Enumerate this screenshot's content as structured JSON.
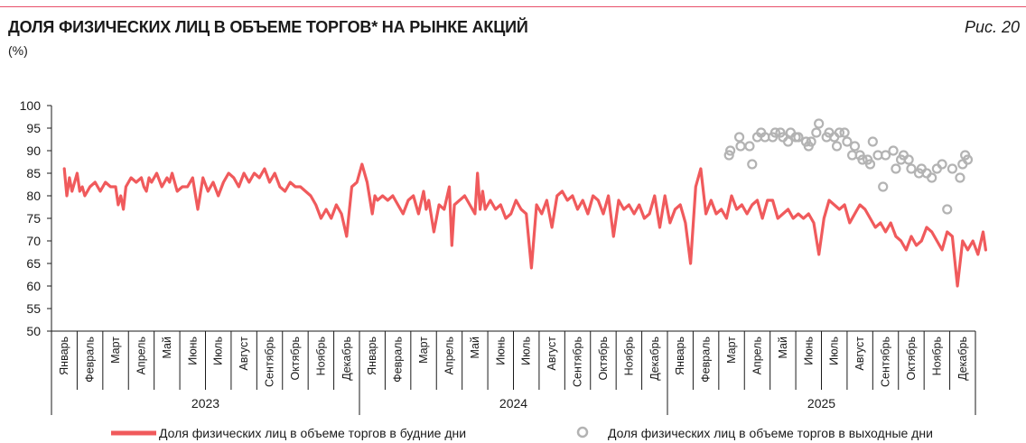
{
  "header": {
    "title": "ДОЛЯ ФИЗИЧЕСКИХ ЛИЦ В ОБЪЕМЕ ТОРГОВ* НА РЫНКЕ АКЦИЙ",
    "unit": "(%)",
    "figure_label": "Рис. 20"
  },
  "colors": {
    "weekday": "#f05a5c",
    "weekend": "#b3b3b3",
    "rule": "#e8506a"
  },
  "chart_data": {
    "type": "line",
    "ylim": [
      50,
      100
    ],
    "yticks": [
      50,
      55,
      60,
      65,
      70,
      75,
      80,
      85,
      90,
      95,
      100
    ],
    "grid": false,
    "legend_position": "bottom",
    "months": [
      "Январь",
      "Февраль",
      "Март",
      "Апрель",
      "Май",
      "Июнь",
      "Июль",
      "Август",
      "Сентябрь",
      "Октябрь",
      "Ноябрь",
      "Декабрь"
    ],
    "years": [
      "2023",
      "2024",
      "2025"
    ],
    "series": [
      {
        "name": "Доля физических лиц в объеме торгов в будние дни",
        "style": "line",
        "x_month_index": [
          0,
          0.1,
          0.2,
          0.3,
          0.4,
          0.5,
          0.6,
          0.7,
          0.8,
          0.9,
          1.0,
          1.2,
          1.4,
          1.6,
          1.8,
          2.0,
          2.1,
          2.2,
          2.3,
          2.4,
          2.6,
          2.8,
          3.0,
          3.1,
          3.2,
          3.3,
          3.4,
          3.6,
          3.8,
          4.0,
          4.1,
          4.2,
          4.4,
          4.6,
          4.8,
          5.0,
          5.2,
          5.4,
          5.6,
          5.8,
          6.0,
          6.2,
          6.4,
          6.6,
          6.8,
          7.0,
          7.2,
          7.4,
          7.6,
          7.8,
          8.0,
          8.2,
          8.4,
          8.6,
          8.8,
          9.0,
          9.2,
          9.4,
          9.6,
          9.8,
          10.0,
          10.2,
          10.4,
          10.6,
          10.8,
          11.0,
          11.2,
          11.4,
          11.6,
          11.8,
          12.0,
          12.1,
          12.2,
          12.4,
          12.6,
          12.8,
          13.0,
          13.2,
          13.4,
          13.6,
          13.8,
          14.0,
          14.1,
          14.2,
          14.4,
          14.6,
          14.8,
          15.0,
          15.1,
          15.2,
          15.4,
          15.6,
          15.8,
          16.0,
          16.1,
          16.2,
          16.3,
          16.4,
          16.6,
          16.8,
          17.0,
          17.2,
          17.4,
          17.6,
          17.8,
          18.0,
          18.2,
          18.4,
          18.6,
          18.8,
          19.0,
          19.2,
          19.4,
          19.6,
          19.8,
          20.0,
          20.2,
          20.4,
          20.6,
          20.8,
          21.0,
          21.2,
          21.4,
          21.6,
          21.8,
          22.0,
          22.2,
          22.4,
          22.6,
          22.8,
          23.0,
          23.2,
          23.4,
          23.6,
          23.8,
          24.0,
          24.1,
          24.2,
          24.4,
          24.6,
          24.8,
          25.0,
          25.2,
          25.4,
          25.6,
          25.8,
          26.0,
          26.2,
          26.4,
          26.6,
          26.8,
          27.0,
          27.2,
          27.4,
          27.6,
          27.8,
          28.0,
          28.2,
          28.4,
          28.6,
          28.8,
          29.0,
          29.2,
          29.4,
          29.6,
          29.8,
          30.0,
          30.2,
          30.4,
          30.6,
          30.8,
          31.0,
          31.2,
          31.4,
          31.6,
          31.8,
          32.0,
          32.2,
          32.4,
          32.6,
          32.8,
          33.0,
          33.2,
          33.4,
          33.6,
          33.8,
          34.0,
          34.2,
          34.4,
          34.6,
          34.8,
          35.0,
          35.2,
          35.4,
          35.6,
          35.8,
          35.9
        ],
        "values": [
          86,
          80,
          84,
          81,
          83,
          85,
          81,
          82,
          80,
          81,
          82,
          83,
          81,
          83,
          82,
          82,
          78,
          80,
          77,
          82,
          84,
          83,
          84,
          82,
          81,
          84,
          83,
          85,
          82,
          84,
          83,
          85,
          81,
          82,
          82,
          84,
          77,
          84,
          81,
          83,
          80,
          83,
          85,
          84,
          82,
          85,
          83,
          85,
          84,
          86,
          83,
          85,
          82,
          81,
          83,
          82,
          82,
          81,
          80,
          78,
          75,
          77,
          75,
          78,
          76,
          71,
          82,
          83,
          87,
          83,
          76,
          80,
          79,
          80,
          79,
          80,
          78,
          76,
          79,
          80,
          76,
          81,
          77,
          79,
          72,
          78,
          77,
          82,
          69,
          78,
          79,
          80,
          78,
          76,
          85,
          77,
          81,
          77,
          79,
          77,
          78,
          75,
          76,
          79,
          77,
          76,
          64,
          78,
          76,
          79,
          73,
          80,
          81,
          79,
          80,
          77,
          79,
          76,
          80,
          79,
          76,
          80,
          71,
          79,
          77,
          78,
          76,
          78,
          75,
          76,
          80,
          73,
          80,
          74,
          77,
          78,
          76,
          74,
          65,
          82,
          86,
          76,
          79,
          76,
          77,
          75,
          80,
          77,
          78,
          76,
          78,
          79,
          75,
          79,
          79,
          75,
          76,
          77,
          75,
          76,
          75,
          76,
          74,
          67,
          75,
          79,
          78,
          77,
          78,
          74,
          76,
          78,
          77,
          75,
          73,
          74,
          72,
          74,
          71,
          70,
          68,
          71,
          69,
          70,
          73,
          72,
          70,
          68,
          72,
          71,
          60,
          70,
          68,
          70,
          67,
          72,
          68,
          70,
          67,
          70,
          68,
          70,
          71,
          73
        ]
      },
      {
        "name": "Доля физических лиц в объеме торгов в выходные дни",
        "style": "markers",
        "x_month_index": [
          25.9,
          25.95,
          26.3,
          26.35,
          26.7,
          26.8,
          27.0,
          27.15,
          27.3,
          27.6,
          27.7,
          27.9,
          28.0,
          28.2,
          28.3,
          28.5,
          28.6,
          28.9,
          29.0,
          29.1,
          29.3,
          29.4,
          29.7,
          29.8,
          30.0,
          30.1,
          30.2,
          30.4,
          30.5,
          30.7,
          30.8,
          31.0,
          31.1,
          31.3,
          31.4,
          31.5,
          31.7,
          31.9,
          32.0,
          32.3,
          32.4,
          32.6,
          32.7,
          32.9,
          33.0,
          33.3,
          33.4,
          33.6,
          33.8,
          34.0,
          34.2,
          34.4,
          34.6,
          34.9,
          35.0,
          35.1,
          35.2
        ],
        "values": [
          89,
          90,
          93,
          91,
          91,
          87,
          93,
          94,
          93,
          93,
          94,
          94,
          93,
          92,
          94,
          93,
          93,
          92,
          91,
          92,
          94,
          96,
          93,
          94,
          93,
          91,
          94,
          94,
          92,
          89,
          91,
          89,
          88,
          88,
          87,
          92,
          89,
          82,
          89,
          90,
          86,
          88,
          89,
          88,
          86,
          85,
          86,
          85,
          84,
          86,
          87,
          77,
          86,
          84,
          87,
          89,
          88
        ]
      }
    ]
  },
  "legend": {
    "weekday_label": "Доля физических лиц в объеме торгов в будние дни",
    "weekend_label": "Доля физических лиц в объеме торгов в выходные дни"
  }
}
